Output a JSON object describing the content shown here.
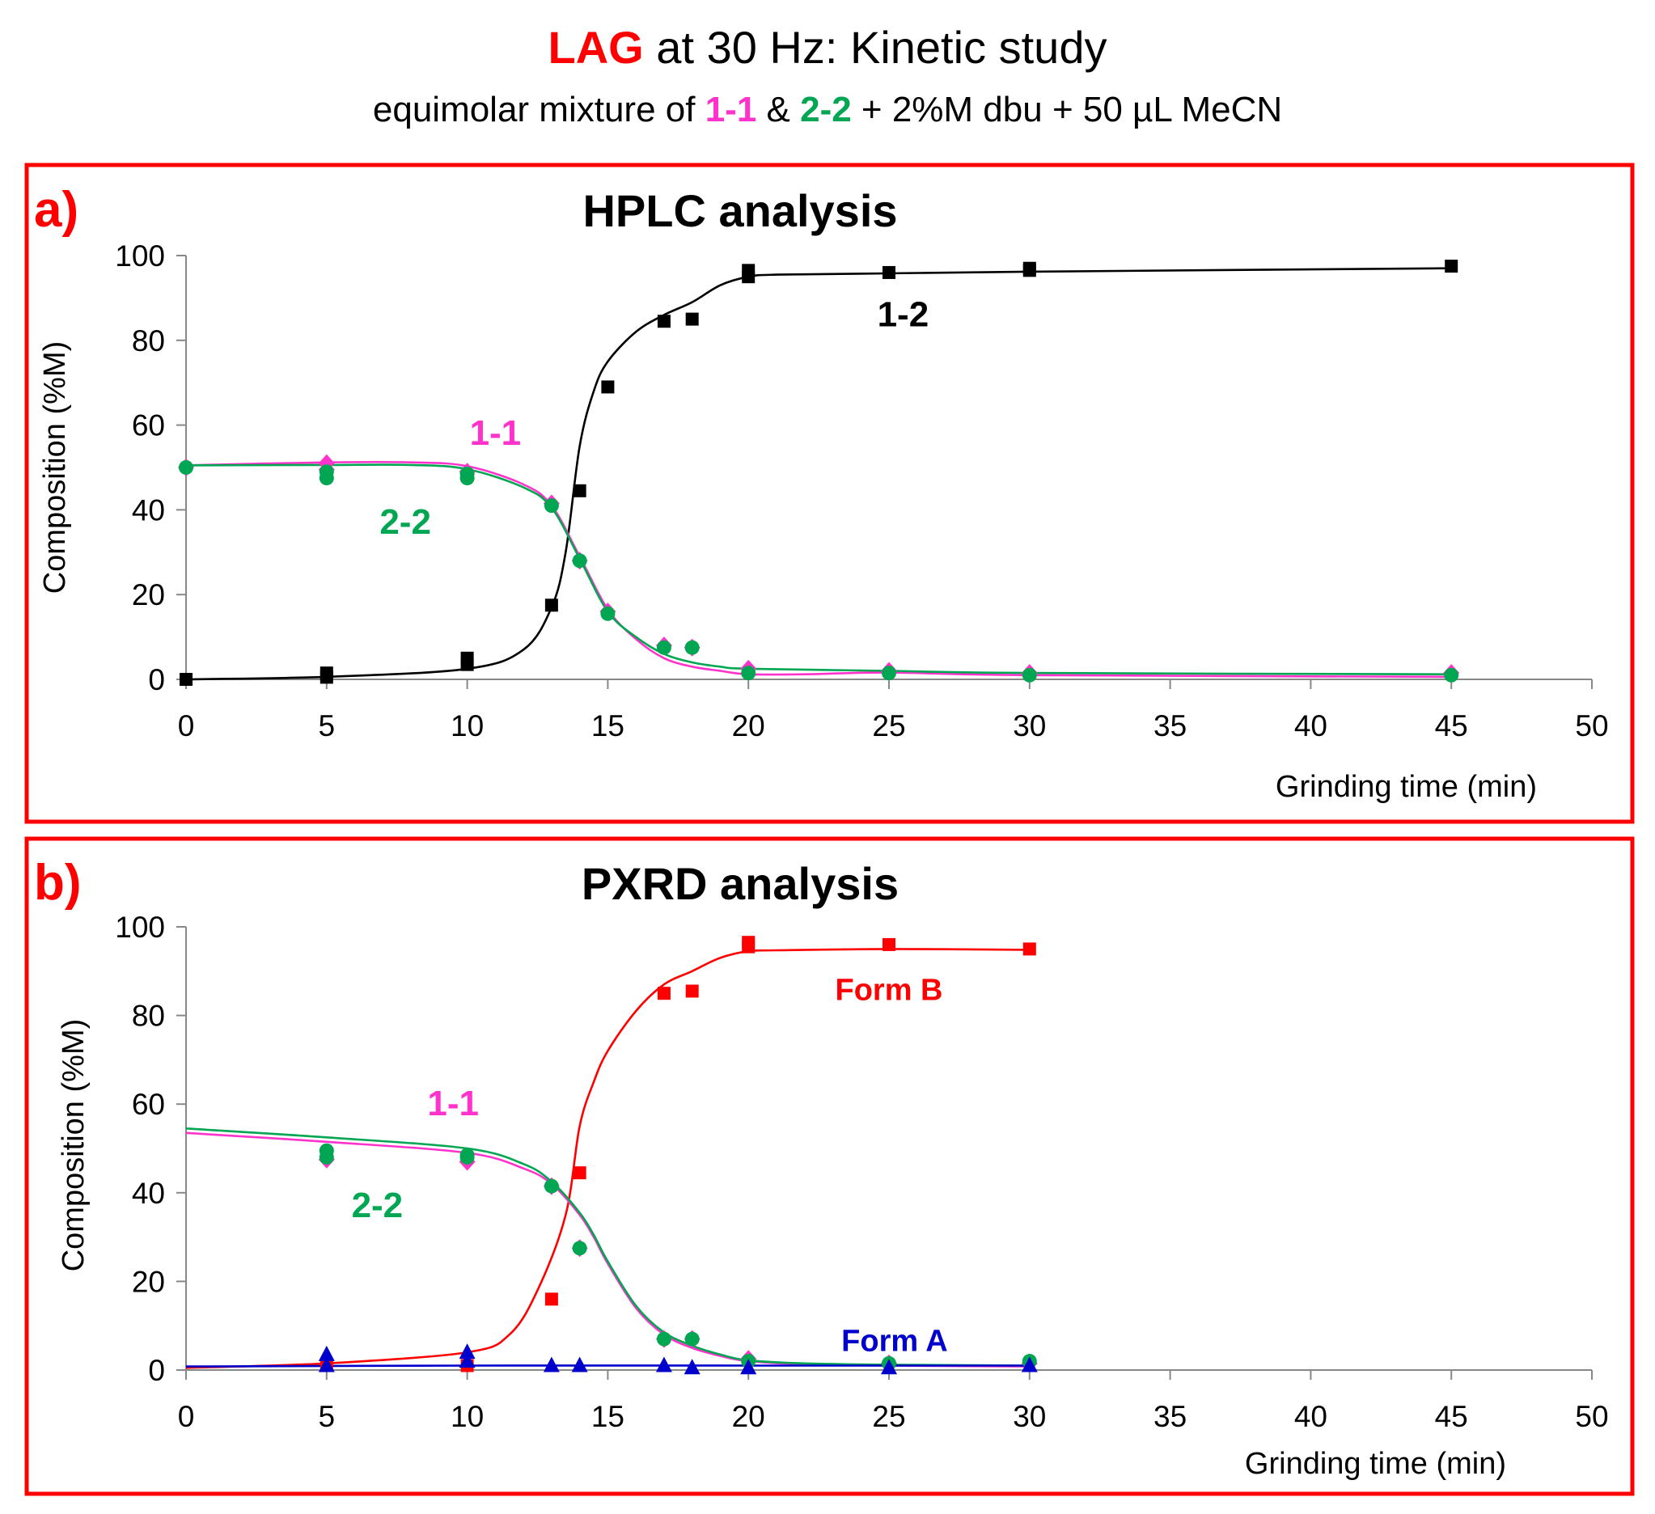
{
  "header": {
    "title_highlight": "LAG",
    "title_rest": " at 30 Hz: Kinetic study",
    "subtitle_parts": [
      {
        "text": "equimolar mixture of ",
        "color": "#000000"
      },
      {
        "text": "1-1",
        "color": "#ff33cc"
      },
      {
        "text": " & ",
        "color": "#000000"
      },
      {
        "text": "2-2",
        "color": "#00a651"
      },
      {
        "text": "  + 2%M dbu + 50 µL MeCN",
        "color": "#000000"
      }
    ]
  },
  "colors": {
    "frame": "#ff0000",
    "series_1_2": "#000000",
    "series_1_1": "#ff33cc",
    "series_2_2": "#00a651",
    "form_b": "#ff0000",
    "form_a": "#0000cc",
    "axis": "#888888"
  },
  "chart_data": [
    {
      "panel_label": "a)",
      "type": "scatter",
      "title": "HPLC analysis",
      "xlabel": "Grinding time (min)",
      "ylabel": "Composition (%M)",
      "xlim": [
        0,
        50
      ],
      "ylim": [
        0,
        100
      ],
      "xticks": [
        0,
        5,
        10,
        15,
        20,
        25,
        30,
        35,
        40,
        45,
        50
      ],
      "yticks": [
        0,
        20,
        40,
        60,
        80,
        100
      ],
      "series": [
        {
          "name": "1-2",
          "label": "1-2",
          "color": "#000000",
          "marker": "square",
          "points": [
            [
              0,
              0
            ],
            [
              5,
              0.5
            ],
            [
              5,
              1.5
            ],
            [
              10,
              3.5
            ],
            [
              10,
              5
            ],
            [
              13,
              17.5
            ],
            [
              14,
              44.5
            ],
            [
              15,
              69
            ],
            [
              17,
              84.5
            ],
            [
              18,
              85
            ],
            [
              20,
              95
            ],
            [
              20,
              96.5
            ],
            [
              25,
              96
            ],
            [
              30,
              96.5
            ],
            [
              30,
              97
            ],
            [
              45,
              97.5
            ]
          ],
          "curve": [
            [
              0,
              0
            ],
            [
              5,
              0.6
            ],
            [
              10,
              2.5
            ],
            [
              12,
              7
            ],
            [
              13,
              17
            ],
            [
              13.5,
              30
            ],
            [
              14,
              55
            ],
            [
              14.5,
              68
            ],
            [
              15,
              75
            ],
            [
              16,
              82
            ],
            [
              17,
              86
            ],
            [
              18,
              89
            ],
            [
              19,
              93
            ],
            [
              20,
              95
            ],
            [
              21,
              95.5
            ],
            [
              25,
              95.8
            ],
            [
              30,
              96.2
            ],
            [
              45,
              97
            ]
          ]
        },
        {
          "name": "1-1",
          "label": "1-1",
          "color": "#ff33cc",
          "marker": "diamond",
          "points": [
            [
              0,
              50
            ],
            [
              5,
              51
            ],
            [
              5,
              49.5
            ],
            [
              10,
              49
            ],
            [
              13,
              41.5
            ],
            [
              14,
              28
            ],
            [
              15,
              16
            ],
            [
              17,
              8
            ],
            [
              18,
              7.5
            ],
            [
              20,
              2.5
            ],
            [
              25,
              2
            ],
            [
              30,
              1.5
            ],
            [
              45,
              1.5
            ]
          ],
          "curve": [
            [
              0,
              50.5
            ],
            [
              5,
              51.2
            ],
            [
              8,
              51.2
            ],
            [
              10,
              50.3
            ],
            [
              12,
              46
            ],
            [
              13,
              41
            ],
            [
              14,
              29
            ],
            [
              15,
              16.5
            ],
            [
              16,
              9.5
            ],
            [
              17,
              5
            ],
            [
              18,
              3
            ],
            [
              19,
              2
            ],
            [
              20,
              1.2
            ],
            [
              22,
              1.2
            ],
            [
              25,
              1.6
            ],
            [
              30,
              1
            ],
            [
              45,
              0.6
            ]
          ]
        },
        {
          "name": "2-2",
          "label": "2-2",
          "color": "#00a651",
          "marker": "circle",
          "points": [
            [
              0,
              50
            ],
            [
              5,
              47.5
            ],
            [
              5,
              49
            ],
            [
              10,
              47.5
            ],
            [
              10,
              48.5
            ],
            [
              13,
              41
            ],
            [
              14,
              28
            ],
            [
              15,
              15.5
            ],
            [
              17,
              7.5
            ],
            [
              18,
              7.5
            ],
            [
              20,
              1.5
            ],
            [
              25,
              1.5
            ],
            [
              30,
              1
            ],
            [
              45,
              1
            ]
          ],
          "curve": [
            [
              0,
              50.5
            ],
            [
              5,
              50.6
            ],
            [
              8,
              50.6
            ],
            [
              10,
              49.6
            ],
            [
              12,
              45.3
            ],
            [
              13,
              40.5
            ],
            [
              14,
              28.5
            ],
            [
              15,
              16
            ],
            [
              16,
              10
            ],
            [
              17,
              6
            ],
            [
              18,
              4
            ],
            [
              19,
              3
            ],
            [
              20,
              2.5
            ],
            [
              25,
              2
            ],
            [
              30,
              1.5
            ],
            [
              45,
              1.2
            ]
          ]
        }
      ],
      "annotations": [
        {
          "text": "1-2",
          "x": 25.5,
          "y": 86,
          "color": "#000000"
        },
        {
          "text": "1-1",
          "x": 11,
          "y": 58,
          "color": "#ff33cc"
        },
        {
          "text": "2-2",
          "x": 7.8,
          "y": 37,
          "color": "#00a651"
        }
      ]
    },
    {
      "panel_label": "b)",
      "type": "scatter",
      "title": "PXRD analysis",
      "xlabel": "Grinding time (min)",
      "ylabel": "Composition (%M)",
      "xlim": [
        0,
        50
      ],
      "ylim": [
        0,
        100
      ],
      "xticks": [
        0,
        5,
        10,
        15,
        20,
        25,
        30,
        35,
        40,
        45,
        50
      ],
      "yticks": [
        0,
        20,
        40,
        60,
        80,
        100
      ],
      "series": [
        {
          "name": "Form B",
          "label": "Form B",
          "color": "#ff0000",
          "marker": "square",
          "points": [
            [
              5,
              1
            ],
            [
              10,
              1
            ],
            [
              13,
              16
            ],
            [
              14,
              44.5
            ],
            [
              17,
              85
            ],
            [
              18,
              85.5
            ],
            [
              20,
              95.5
            ],
            [
              20,
              96.5
            ],
            [
              25,
              96
            ],
            [
              30,
              95
            ]
          ],
          "curve": [
            [
              0,
              0.5
            ],
            [
              5,
              1.5
            ],
            [
              10,
              4
            ],
            [
              11.5,
              8
            ],
            [
              12.5,
              18
            ],
            [
              13.5,
              35
            ],
            [
              14,
              55
            ],
            [
              14.5,
              65
            ],
            [
              15,
              72
            ],
            [
              16,
              81
            ],
            [
              17,
              87
            ],
            [
              18,
              90
            ],
            [
              19,
              93
            ],
            [
              20,
              94.5
            ],
            [
              21,
              94.7
            ],
            [
              25,
              95
            ],
            [
              30,
              94.8
            ]
          ]
        },
        {
          "name": "1-1",
          "label": "1-1",
          "color": "#ff33cc",
          "marker": "diamond",
          "points": [
            [
              5,
              47.5
            ],
            [
              10,
              47
            ],
            [
              13,
              41.5
            ],
            [
              14,
              27.5
            ],
            [
              17,
              7
            ],
            [
              18,
              7
            ],
            [
              20,
              2.5
            ],
            [
              25,
              1.5
            ],
            [
              30,
              1.5
            ]
          ],
          "curve": [
            [
              0,
              53.5
            ],
            [
              5,
              51.5
            ],
            [
              10,
              49
            ],
            [
              12,
              45.5
            ],
            [
              13,
              42
            ],
            [
              14,
              35
            ],
            [
              14.5,
              30
            ],
            [
              15,
              24
            ],
            [
              16,
              14
            ],
            [
              17,
              8
            ],
            [
              18,
              5
            ],
            [
              19,
              3.2
            ],
            [
              20,
              2
            ],
            [
              22,
              1.3
            ],
            [
              25,
              1
            ],
            [
              30,
              0.8
            ]
          ]
        },
        {
          "name": "2-2",
          "label": "2-2",
          "color": "#00a651",
          "marker": "circle",
          "points": [
            [
              5,
              48
            ],
            [
              5,
              49.5
            ],
            [
              10,
              48
            ],
            [
              10,
              48.5
            ],
            [
              13,
              41.5
            ],
            [
              14,
              27.5
            ],
            [
              17,
              7
            ],
            [
              18,
              7
            ],
            [
              20,
              2
            ],
            [
              25,
              1.5
            ],
            [
              30,
              2
            ]
          ],
          "curve": [
            [
              0,
              54.5
            ],
            [
              5,
              52.5
            ],
            [
              10,
              50
            ],
            [
              12,
              46.5
            ],
            [
              13,
              42.5
            ],
            [
              14,
              35.5
            ],
            [
              14.5,
              30.5
            ],
            [
              15,
              24.5
            ],
            [
              16,
              14.5
            ],
            [
              17,
              8.5
            ],
            [
              18,
              5.5
            ],
            [
              19,
              3.5
            ],
            [
              20,
              2.2
            ],
            [
              22,
              1.5
            ],
            [
              25,
              1.2
            ],
            [
              30,
              1
            ]
          ]
        },
        {
          "name": "Form A",
          "label": "Form A",
          "color": "#0000cc",
          "marker": "triangle",
          "points": [
            [
              5,
              3.5
            ],
            [
              5,
              1
            ],
            [
              10,
              4
            ],
            [
              10,
              2
            ],
            [
              13,
              1
            ],
            [
              14,
              1
            ],
            [
              17,
              1
            ],
            [
              18,
              0.5
            ],
            [
              20,
              0.5
            ],
            [
              25,
              0.5
            ],
            [
              30,
              1
            ]
          ],
          "curve": [
            [
              0,
              0.8
            ],
            [
              10,
              1
            ],
            [
              20,
              1
            ],
            [
              30,
              1
            ]
          ]
        }
      ],
      "annotations": [
        {
          "text": "Form B",
          "x": 25,
          "y": 86,
          "color": "#ff0000"
        },
        {
          "text": "1-1",
          "x": 9.5,
          "y": 60,
          "color": "#ff33cc"
        },
        {
          "text": "2-2",
          "x": 6.8,
          "y": 37,
          "color": "#00a651"
        },
        {
          "text": "Form A",
          "x": 25.2,
          "y": 6.8,
          "color": "#0000cc"
        }
      ]
    }
  ]
}
